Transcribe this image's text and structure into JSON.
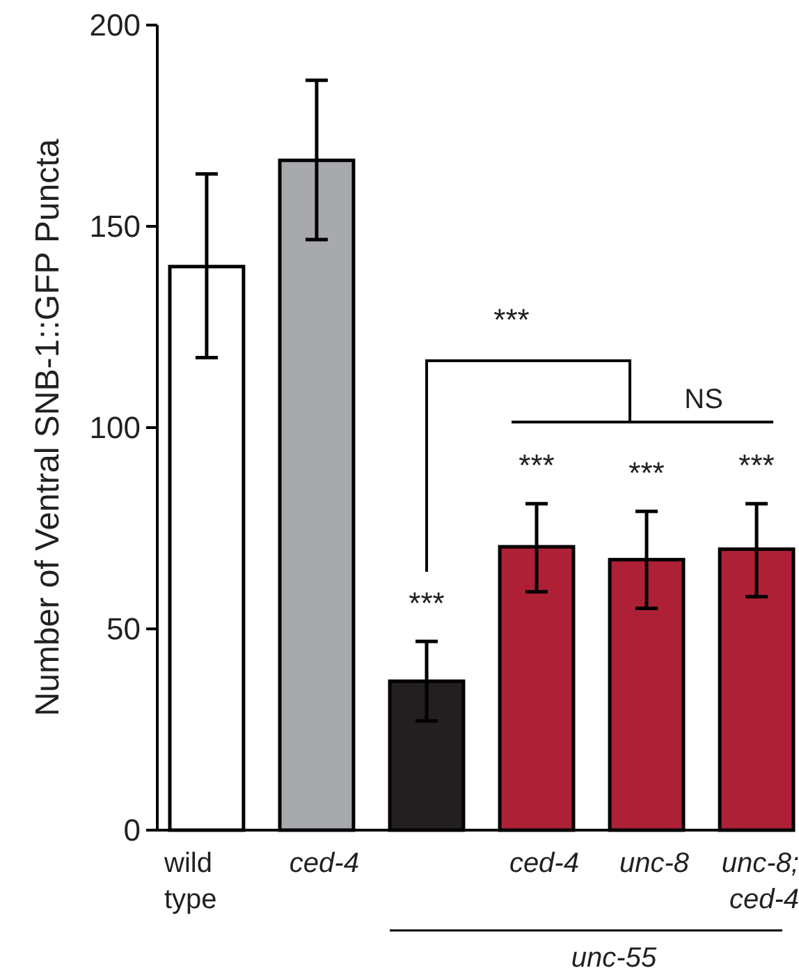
{
  "chart_data": {
    "type": "bar",
    "ylabel": "Number of Ventral SNB-1::GFP Puncta",
    "categories": [
      "wild type",
      "ced-4",
      null,
      "ced-4",
      "unc-8",
      "unc-8; ced-4"
    ],
    "values": [
      140,
      166.4,
      37,
      70.4,
      67.2,
      69.8
    ],
    "colors": [
      "#ffffff",
      "#a7a9ac",
      "#231f20",
      "#ae2036",
      "#ae2036",
      "#ae2036"
    ],
    "errors": [
      [
        117.4,
        163
      ],
      [
        146.7,
        186.3
      ],
      [
        27.1,
        46.9
      ],
      [
        59.2,
        81.1
      ],
      [
        55.1,
        79.2
      ],
      [
        58,
        81.1
      ]
    ],
    "ylim": [
      0,
      200
    ],
    "yticks": [
      0,
      50,
      100,
      150,
      200
    ],
    "annotations": [
      "***",
      "NS",
      "***",
      "***",
      "***",
      "***",
      "unc-55"
    ]
  }
}
